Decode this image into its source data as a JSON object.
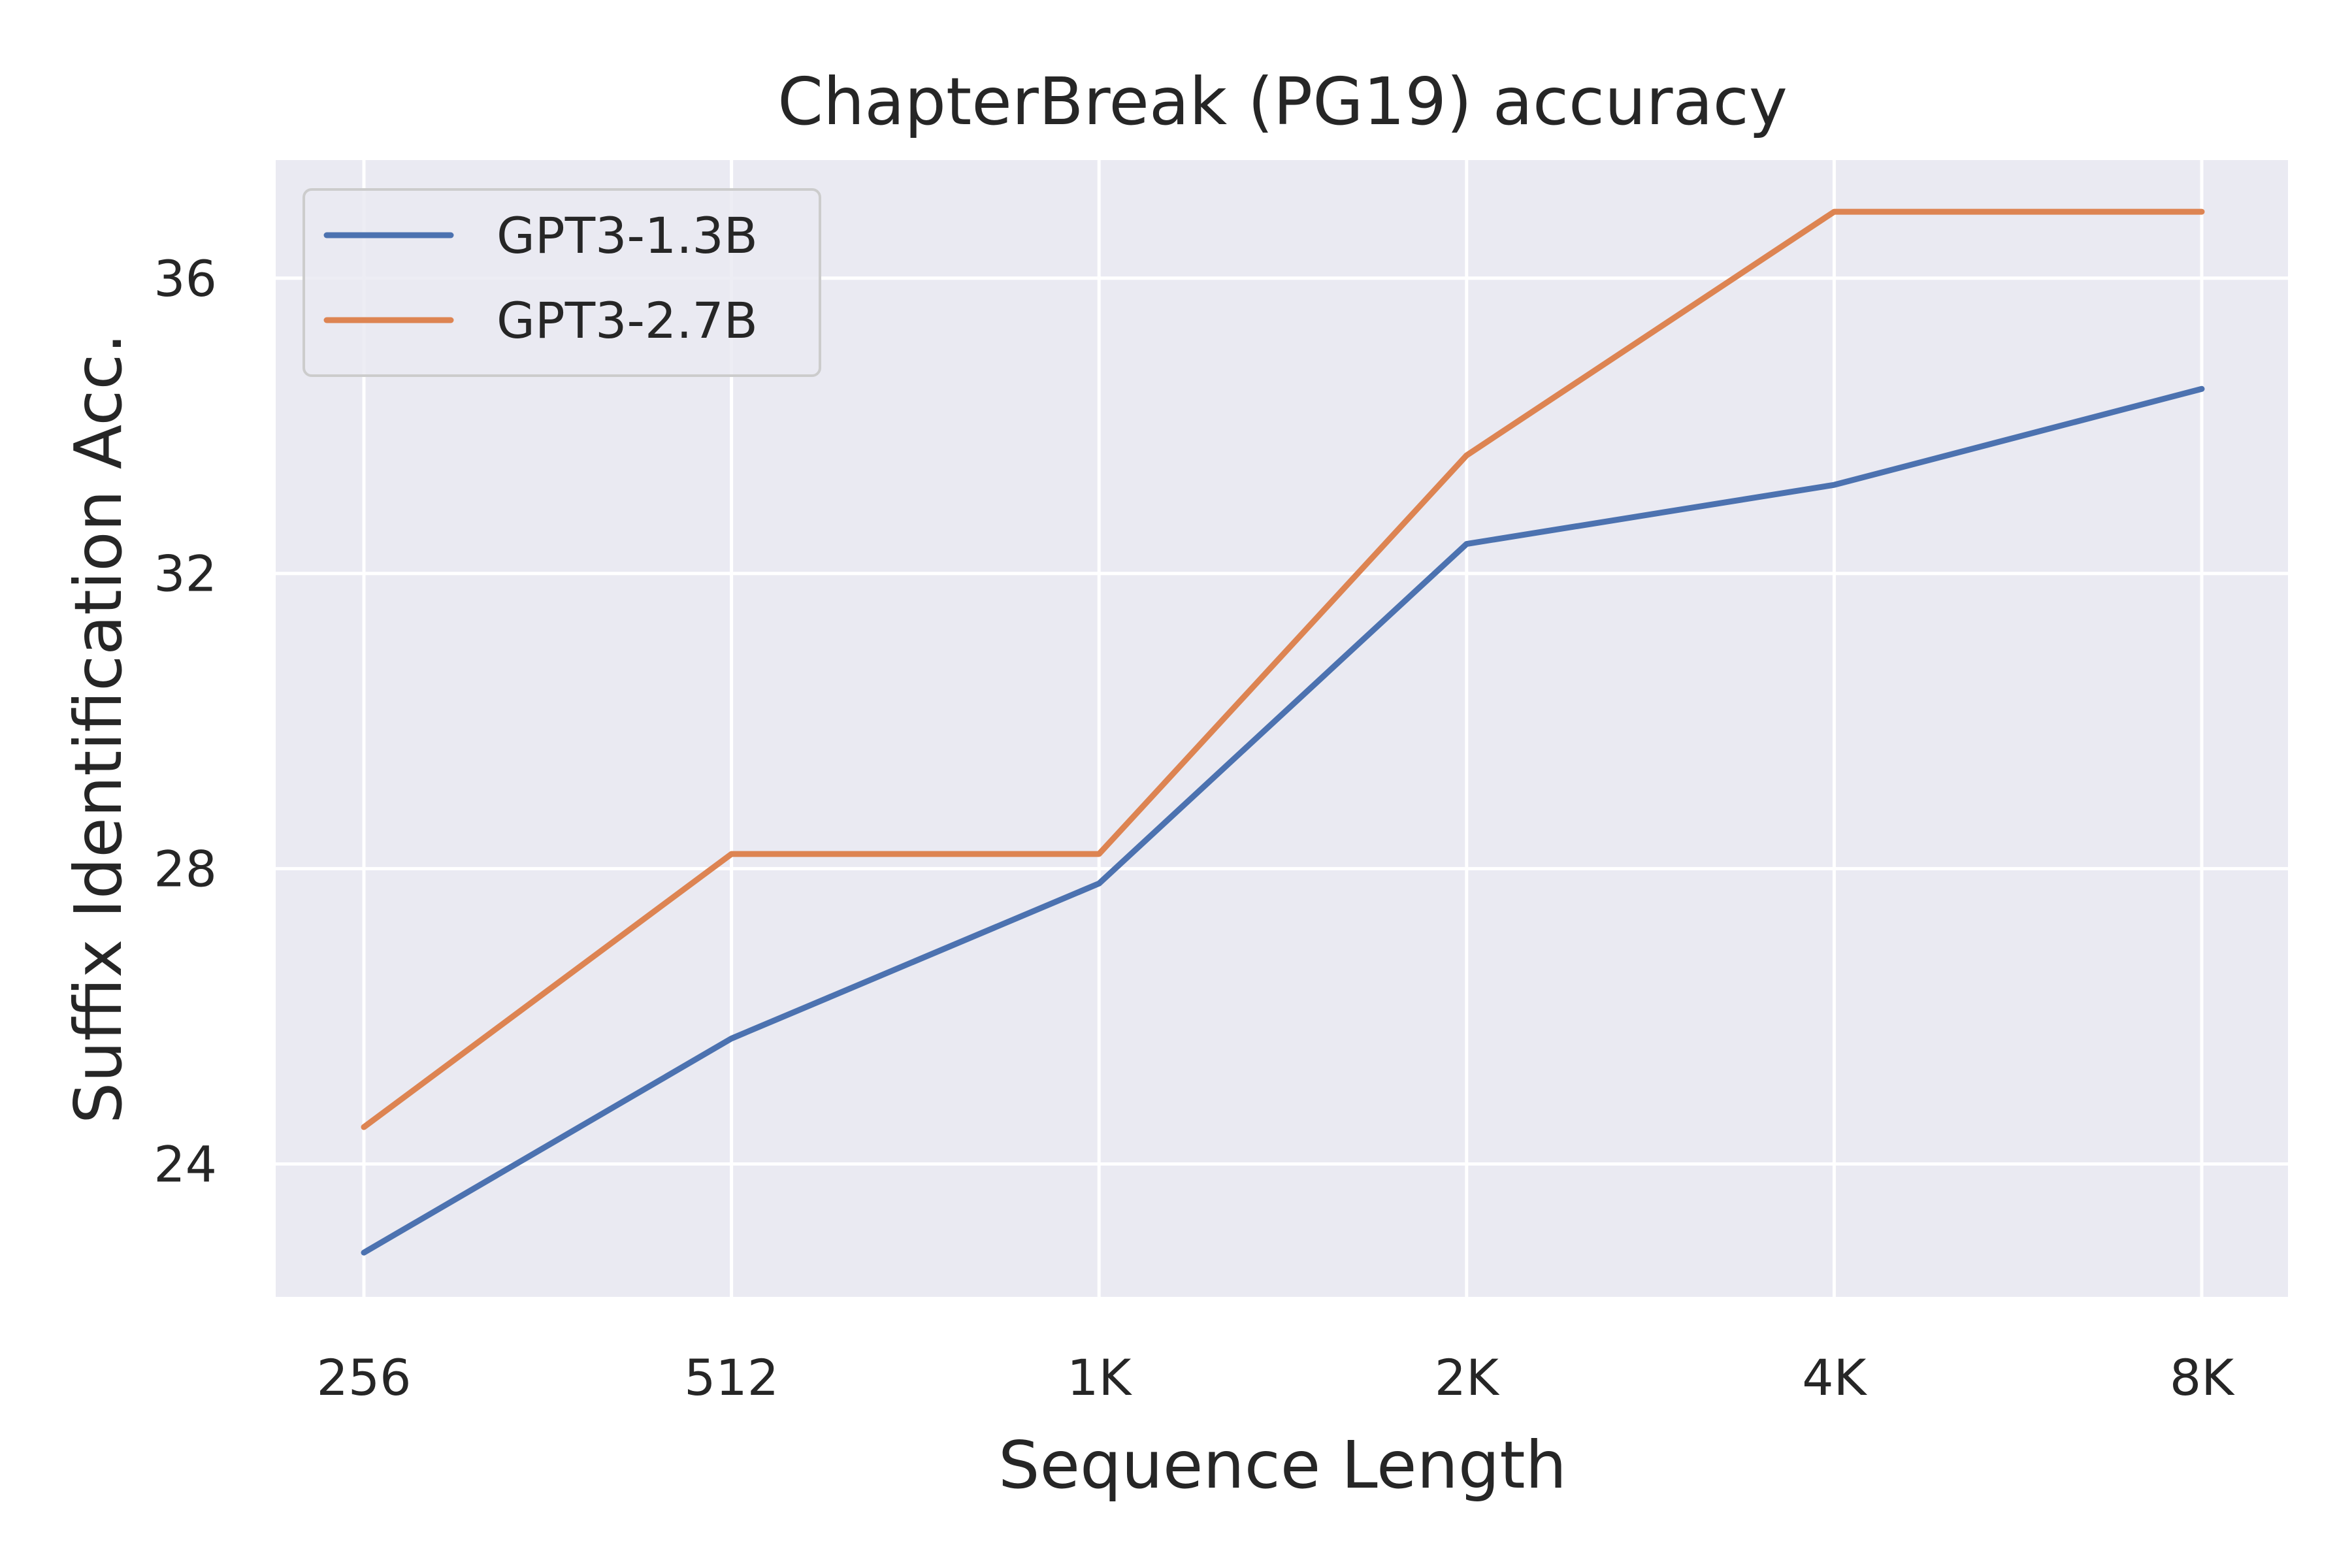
{
  "chart_data": {
    "type": "line",
    "title": "ChapterBreak (PG19) accuracy",
    "xlabel": "Sequence Length",
    "ylabel": "Suffix Identification Acc.",
    "categories": [
      "256",
      "512",
      "1K",
      "2K",
      "4K",
      "8K"
    ],
    "yticks": [
      24,
      28,
      32,
      36
    ],
    "ylim": [
      22.2,
      37.6
    ],
    "grid": true,
    "legend": "top-left",
    "series": [
      {
        "name": "GPT3-1.3B",
        "color": "#4c72b0",
        "values": [
          22.8,
          25.7,
          27.8,
          32.4,
          33.2,
          34.5
        ]
      },
      {
        "name": "GPT3-2.7B",
        "color": "#dd8452",
        "values": [
          24.5,
          28.2,
          28.2,
          33.6,
          36.9,
          36.9
        ]
      }
    ]
  }
}
